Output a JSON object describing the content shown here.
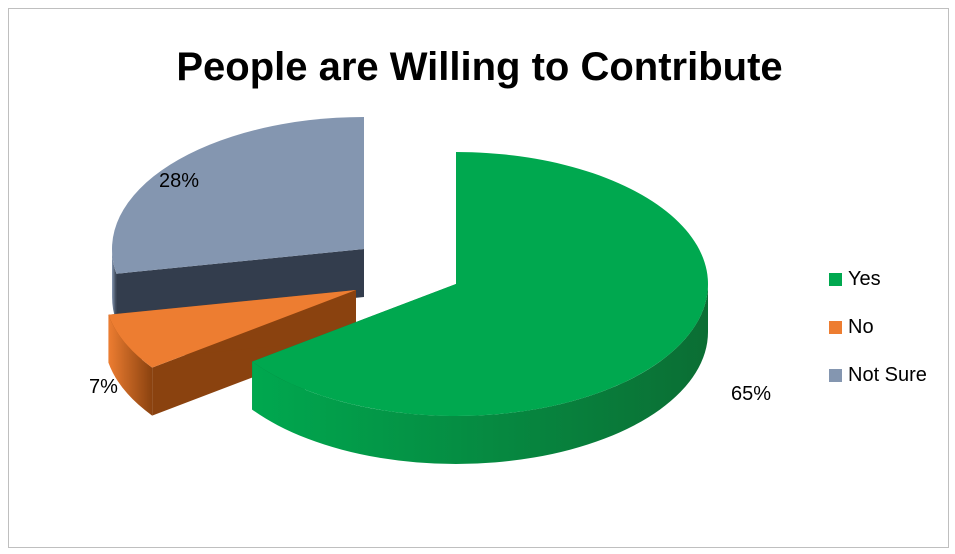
{
  "chart_data": {
    "type": "pie",
    "title": "People are Willing to Contribute",
    "categories": [
      "Yes",
      "No",
      "Not Sure"
    ],
    "values": [
      65,
      7,
      28
    ],
    "data_labels": [
      "65%",
      "7%",
      "28%"
    ],
    "colors": [
      "#00a84f",
      "#ed7d31",
      "#8496b0"
    ],
    "side_colors": [
      "#0b6e34",
      "#8a420f",
      "#333d4d"
    ],
    "exploded": true,
    "style": "3d",
    "legend": "right"
  }
}
